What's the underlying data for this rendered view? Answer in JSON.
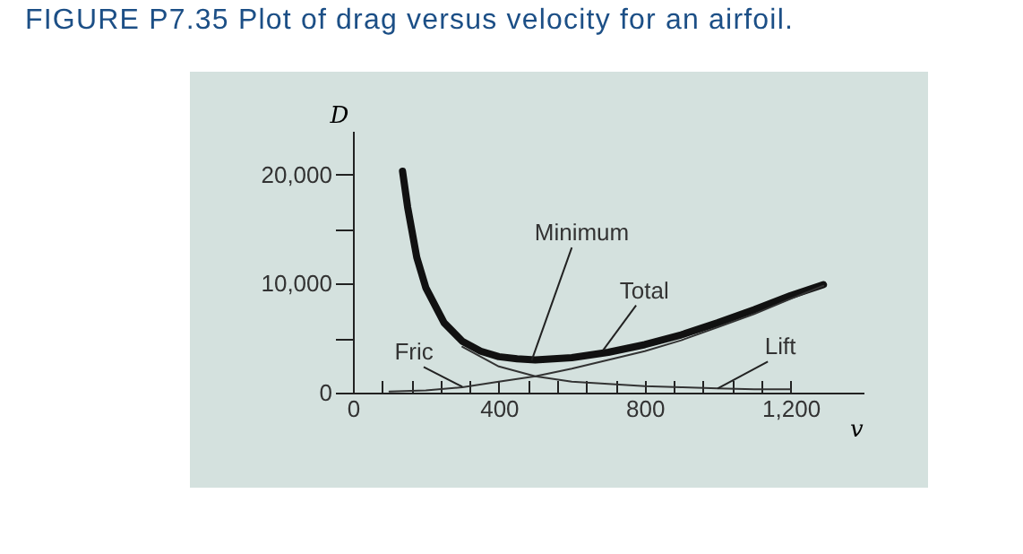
{
  "chart_data": {
    "type": "line",
    "title": "FIGURE P7.35  Plot of drag versus velocity for an airfoil.",
    "xlabel": "v",
    "ylabel": "D",
    "xlim": [
      0,
      1400
    ],
    "ylim": [
      0,
      24000
    ],
    "xticks": [
      0,
      {
        "value": 80,
        "label": null
      },
      {
        "value": 160,
        "label": null
      },
      {
        "value": 240,
        "label": null
      },
      {
        "value": 320,
        "label": null
      },
      400,
      {
        "value": 480,
        "label": null
      },
      {
        "value": 560,
        "label": null
      },
      {
        "value": 640,
        "label": null
      },
      {
        "value": 720,
        "label": null
      },
      800,
      {
        "value": 880,
        "label": null
      },
      {
        "value": 960,
        "label": null
      },
      {
        "value": 1040,
        "label": null
      },
      {
        "value": 1120,
        "label": null
      },
      {
        "value": 1200,
        "label": "1,200"
      }
    ],
    "yticks": [
      0,
      {
        "value": 5000,
        "label": null
      },
      {
        "value": 10000,
        "label": "10,000"
      },
      {
        "value": 15000,
        "label": null
      },
      {
        "value": 20000,
        "label": "20,000"
      }
    ],
    "grid": false,
    "series": [
      {
        "color": "#111111",
        "x": [
          136,
          150,
          175,
          200,
          250,
          300,
          350,
          400,
          450,
          500,
          550,
          600,
          700,
          800,
          900,
          1000,
          1100,
          1200,
          1290
        ],
        "values": [
          20300,
          17000,
          12400,
          9600,
          6400,
          4700,
          3800,
          3300,
          3100,
          3000,
          3100,
          3200,
          3700,
          4400,
          5300,
          6400,
          7600,
          8900,
          9900
        ]
      },
      {
        "color": "#333333",
        "x": [
          100,
          200,
          300,
          400,
          500,
          600,
          700,
          800,
          900,
          1000,
          1100,
          1200,
          1290
        ],
        "values": [
          100,
          200,
          500,
          1000,
          1500,
          2200,
          3000,
          3800,
          4800,
          6000,
          7200,
          8600,
          9800
        ]
      },
      {
        "color": "#333333",
        "x": [
          300,
          400,
          500,
          600,
          700,
          800,
          900,
          1000,
          1100,
          1200
        ],
        "values": [
          4200,
          2400,
          1500,
          1000,
          800,
          600,
          500,
          400,
          300,
          300
        ]
      }
    ],
    "annotations": [
      {
        "text": "Minimum",
        "x": 490,
        "y": 2950
      },
      {
        "text": "Total",
        "x": 686,
        "y": 3900
      },
      {
        "text": "Fric",
        "x": 300,
        "y": 540
      },
      {
        "text": "Lift",
        "x": 1000,
        "y": 380
      }
    ]
  }
}
